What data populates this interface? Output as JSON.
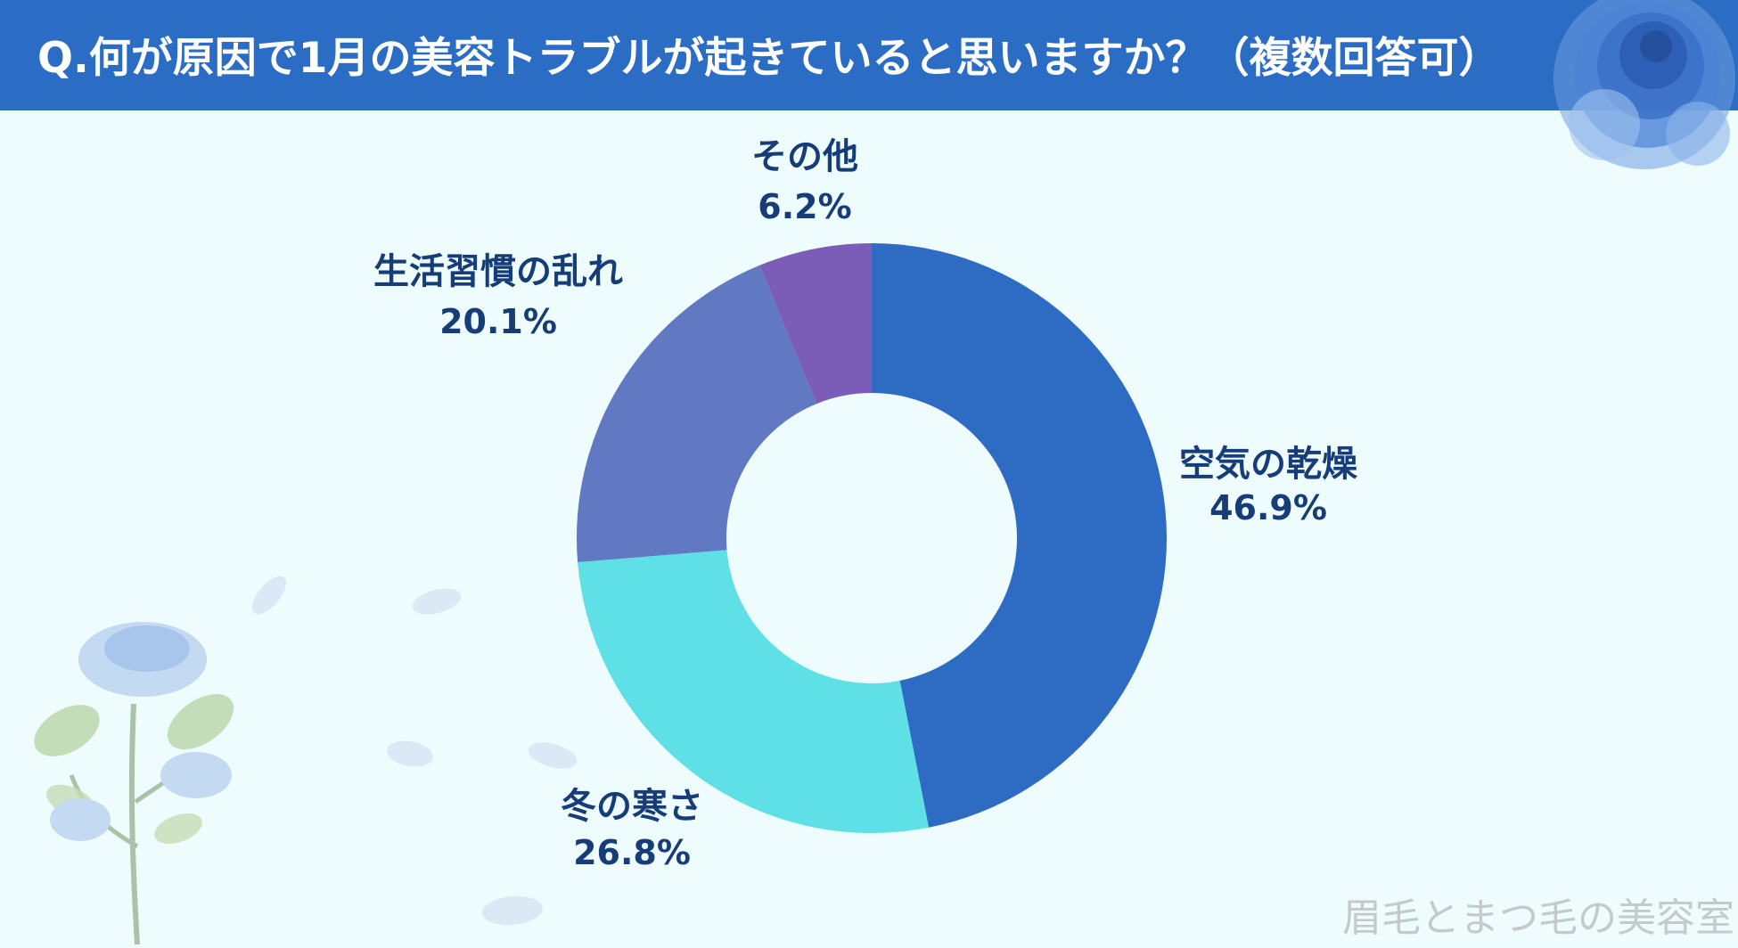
{
  "header": {
    "question": "Q.何が原因で1月の美容トラブルが起きていると思いますか？（複数回答可）"
  },
  "watermark": "眉毛とまつ毛の美容室",
  "colors": {
    "title_bg": "#2b6cc4",
    "background": "#eefcfd",
    "label_text": "#163d78"
  },
  "chart_data": {
    "type": "pie",
    "variant": "donut",
    "title": "Q.何が原因で1月の美容トラブルが起きていると思いますか？（複数回答可）",
    "start": "12 o'clock",
    "direction": "clockwise",
    "slices": [
      {
        "label": "空気の乾燥",
        "value": 46.9,
        "value_label": "46.9%",
        "color": "#2e6bc2"
      },
      {
        "label": "冬の寒さ",
        "value": 26.8,
        "value_label": "26.8%",
        "color": "#5ee0e6"
      },
      {
        "label": "生活習慣の乱れ",
        "value": 20.1,
        "value_label": "20.1%",
        "color": "#6178c2"
      },
      {
        "label": "その他",
        "value": 6.2,
        "value_label": "6.2%",
        "color": "#7b5db7"
      }
    ]
  }
}
